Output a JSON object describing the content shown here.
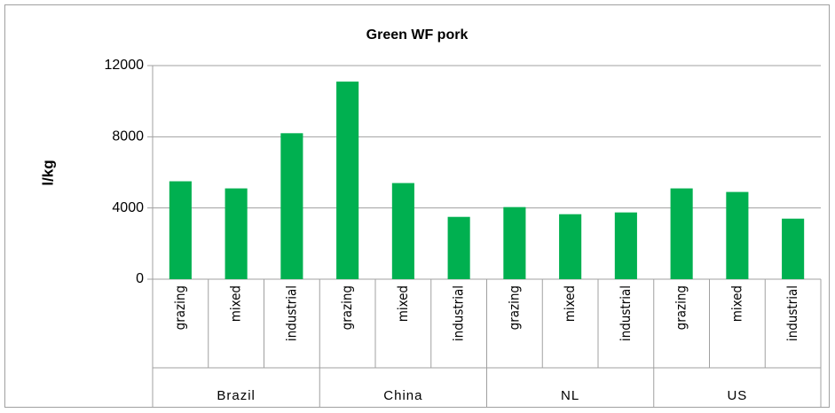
{
  "chart_data": {
    "type": "bar",
    "title": "Green WF pork",
    "y_label": "l/kg",
    "categories": [
      "grazing",
      "mixed",
      "industrial",
      "grazing",
      "mixed",
      "industrial",
      "grazing",
      "mixed",
      "industrial",
      "grazing",
      "mixed",
      "industrial"
    ],
    "groups": [
      "Brazil",
      "China",
      "NL",
      "US"
    ],
    "values": [
      5500,
      5100,
      8200,
      11100,
      5400,
      3500,
      4050,
      3650,
      3750,
      5100,
      4900,
      3400
    ],
    "color": "#00b050",
    "ylim": [
      0,
      12000
    ],
    "yticks": [
      0,
      4000,
      8000,
      12000
    ],
    "grid": true
  }
}
